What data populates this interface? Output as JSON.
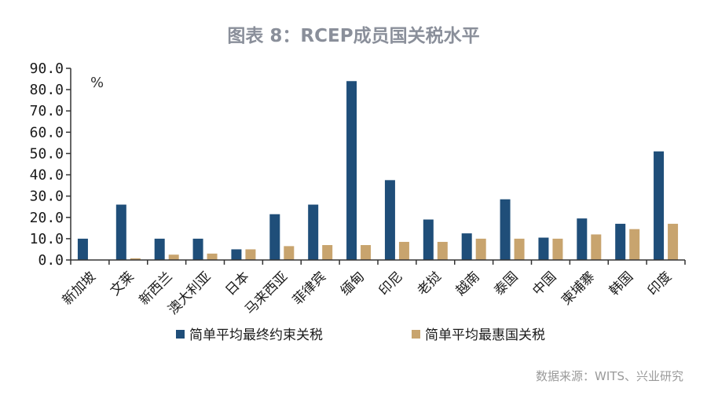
{
  "title": "图表 8：RCEP成员国关税水平",
  "source": "数据来源：WITS、兴业研究",
  "colors": {
    "series1": "#1f4e79",
    "series2": "#c8a46e",
    "axis": "#333333"
  },
  "chart_data": {
    "type": "bar",
    "title": "图表 8：RCEP成员国关税水平",
    "ylabel": "%",
    "ylim": [
      0,
      90
    ],
    "yticks": [
      "0.0",
      "10.0",
      "20.0",
      "30.0",
      "40.0",
      "50.0",
      "60.0",
      "70.0",
      "80.0",
      "90.0"
    ],
    "grid": false,
    "legend_position": "bottom",
    "categories": [
      "新加坡",
      "文莱",
      "新西兰",
      "澳大利亚",
      "日本",
      "马来西亚",
      "菲律宾",
      "缅甸",
      "印尼",
      "老挝",
      "越南",
      "泰国",
      "中国",
      "柬埔寨",
      "韩国",
      "印度"
    ],
    "series": [
      {
        "name": "简单平均最终约束关税",
        "values": [
          10.0,
          26.0,
          10.0,
          10.0,
          5.0,
          21.5,
          26.0,
          84.0,
          37.5,
          19.0,
          12.5,
          28.5,
          10.5,
          19.5,
          17.0,
          51.0
        ]
      },
      {
        "name": "简单平均最惠国关税",
        "values": [
          0.0,
          0.8,
          2.5,
          3.0,
          5.0,
          6.5,
          7.0,
          7.0,
          8.5,
          8.5,
          10.0,
          10.0,
          10.0,
          12.0,
          14.5,
          17.0
        ]
      }
    ]
  }
}
